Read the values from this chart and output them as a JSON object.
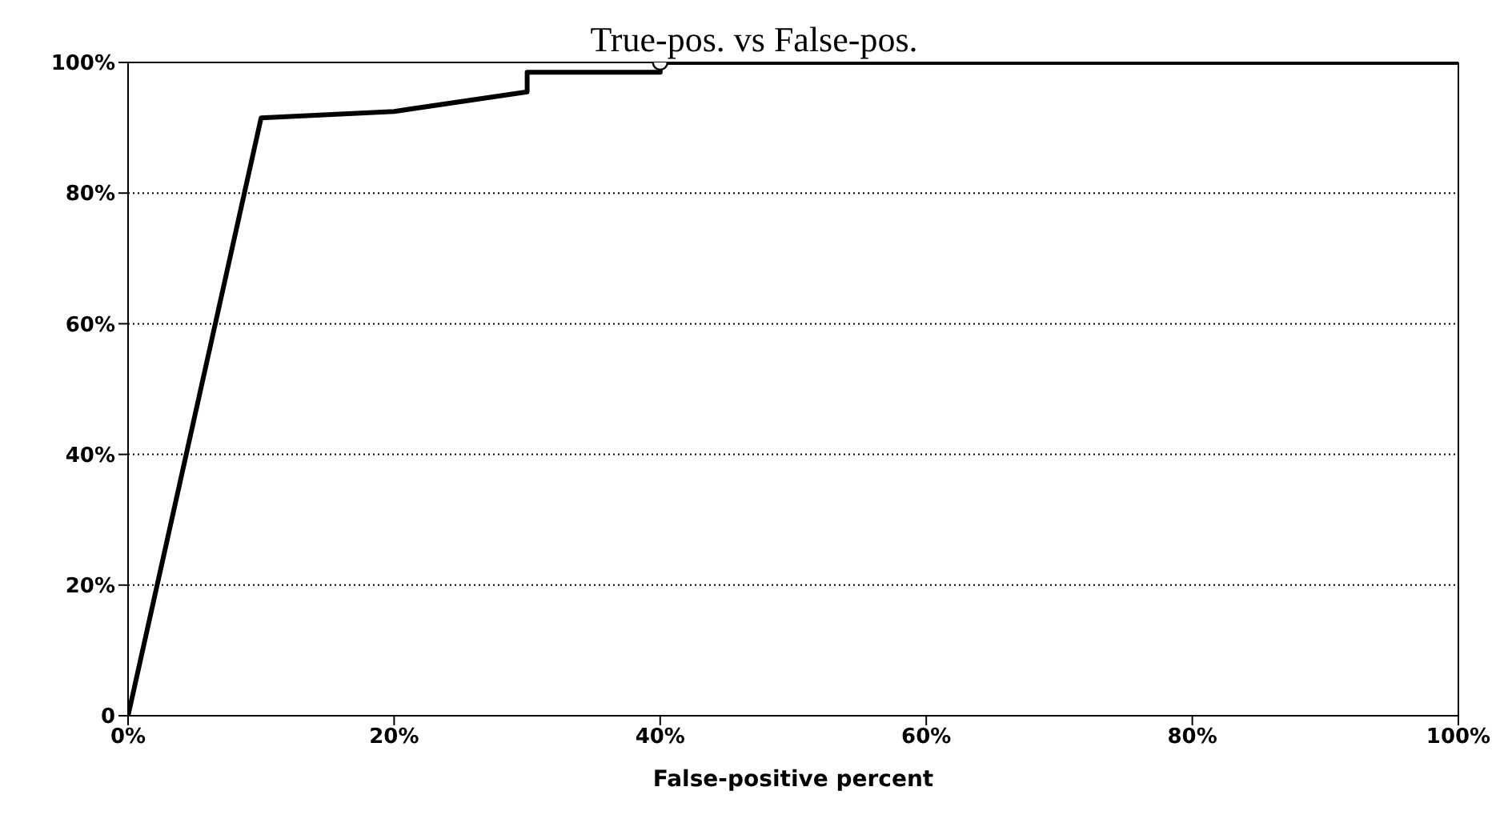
{
  "chart_data": {
    "type": "line",
    "title": "True-pos. vs False-pos.",
    "xlabel": "False-positive percent",
    "xlim": [
      0,
      100
    ],
    "ylim": [
      0,
      100
    ],
    "xticks": [
      {
        "value": 0,
        "label": "0%"
      },
      {
        "value": 20,
        "label": "20%"
      },
      {
        "value": 40,
        "label": "40%"
      },
      {
        "value": 60,
        "label": "60%"
      },
      {
        "value": 80,
        "label": "80%"
      },
      {
        "value": 100,
        "label": "100%"
      }
    ],
    "yticks": [
      0,
      {
        "value": 20,
        "label": "20%"
      },
      {
        "value": 40,
        "label": "40%"
      },
      {
        "value": 60,
        "label": "60%"
      },
      {
        "value": 80,
        "label": "80%"
      },
      {
        "value": 100,
        "label": "100%"
      }
    ],
    "grid": "y",
    "line_style": "solid",
    "series": [
      {
        "color": "#000000",
        "marker": "none",
        "x": [
          0,
          10,
          20,
          30,
          30,
          40,
          40,
          100
        ],
        "values": [
          0,
          91.5,
          92.5,
          95.5,
          98.5,
          98.5,
          100,
          100
        ]
      },
      {
        "type": "scatter",
        "color": "#000000",
        "marker": "circle",
        "x": [
          40
        ],
        "values": [
          100
        ]
      }
    ]
  }
}
